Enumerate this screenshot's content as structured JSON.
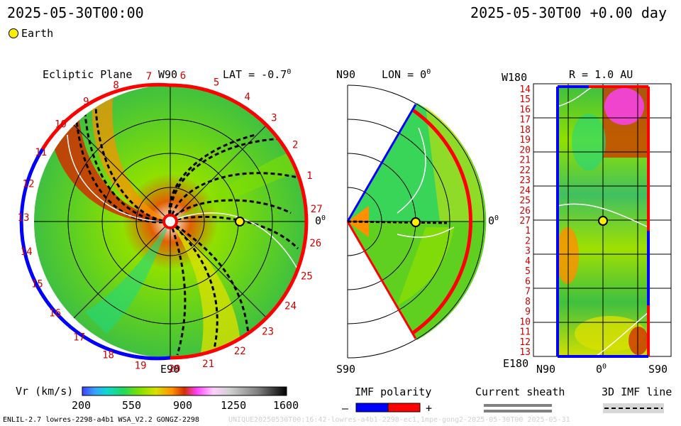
{
  "header": {
    "datetime_left": "2025-05-30T00:00",
    "datetime_right": "2025-05-30T00 +0.00 day",
    "legend_earth": "Earth"
  },
  "panels": {
    "ecliptic": {
      "title": "Ecliptic Plane",
      "lat": "LAT = -0.7",
      "deg_mark": "0",
      "top_label": "W90",
      "bottom_label": "E90",
      "right_label": "0"
    },
    "meridional": {
      "top_label": "N90",
      "lon": "LON = 0",
      "deg_mark": "0",
      "bottom_label": "S90",
      "right_label": "0"
    },
    "radial": {
      "top_left": "W180",
      "title": "R = 1.0 AU",
      "bottom_left": "E180",
      "x_left": "N90",
      "x_mid": "0",
      "x_right": "S90"
    }
  },
  "carrington_labels": [
    "1",
    "2",
    "3",
    "4",
    "5",
    "6",
    "7",
    "8",
    "9",
    "10",
    "11",
    "12",
    "13",
    "14",
    "15",
    "16",
    "17",
    "18",
    "19",
    "20",
    "21",
    "22",
    "23",
    "24",
    "25",
    "26",
    "27"
  ],
  "rot_labels_right": [
    "14",
    "15",
    "16",
    "17",
    "18",
    "19",
    "20",
    "21",
    "22",
    "23",
    "24",
    "25",
    "26",
    "27",
    "1",
    "2",
    "3",
    "4",
    "5",
    "6",
    "7",
    "8",
    "9",
    "10",
    "11",
    "12",
    "13"
  ],
  "colorbar": {
    "label": "Vr (km/s)",
    "ticks": [
      "200",
      "550",
      "900",
      "1250",
      "1600"
    ],
    "colors": [
      "#4040ff",
      "#3aa0ff",
      "#10d8d0",
      "#20d860",
      "#80e000",
      "#d8e000",
      "#ff9000",
      "#d03000",
      "#ff40ff",
      "#ffd0ff",
      "#d0d0d0",
      "#808080",
      "#000000"
    ]
  },
  "imf": {
    "title": "IMF polarity",
    "minus": "–",
    "plus": "+",
    "neg_color": "#0000ff",
    "pos_color": "#ff0000"
  },
  "sheath": {
    "title": "Current sheath"
  },
  "imf3d": {
    "title": "3D IMF line"
  },
  "footer": {
    "left": "ENLIL-2.7 lowres-2298-a4b1 WSA_V2.2 GONGZ-2298",
    "right": "UNIQUE20250530T00:16:42-lowres-a4b1-2298-ec1,1mpe-gong2-2025-05-30T00  2025-05-31"
  }
}
